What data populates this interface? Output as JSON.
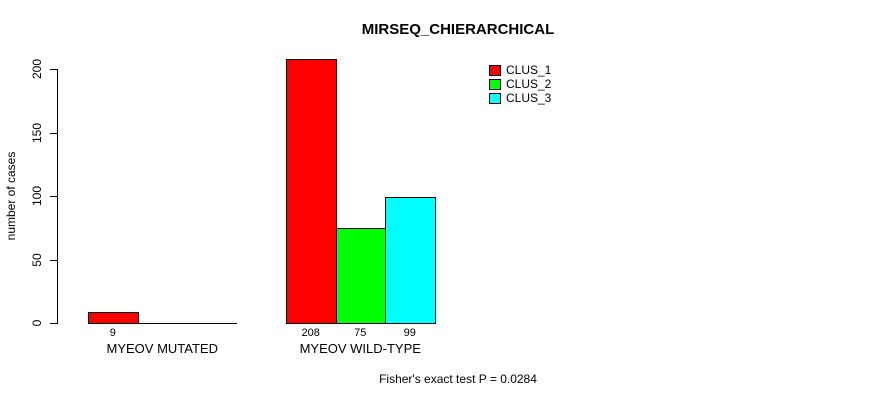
{
  "chart_data": {
    "type": "bar",
    "title": "MIRSEQ_CHIERARCHICAL",
    "ylabel": "number of cases",
    "xlabel": "",
    "ylim": [
      0,
      200
    ],
    "yticks": [
      0,
      50,
      100,
      150,
      200
    ],
    "grid": false,
    "legend_position": "top-right-inside",
    "categories": [
      "MYEOV MUTATED",
      "MYEOV WILD-TYPE"
    ],
    "series": [
      {
        "name": "CLUS_1",
        "color": "#FF0000",
        "values": [
          9,
          208
        ]
      },
      {
        "name": "CLUS_2",
        "color": "#00FF00",
        "values": [
          0,
          75
        ]
      },
      {
        "name": "CLUS_3",
        "color": "#00FFFF",
        "values": [
          0,
          99
        ]
      }
    ],
    "bar_value_labels": [
      [
        "9",
        "",
        ""
      ],
      [
        "208",
        "75",
        "99"
      ]
    ],
    "footnote": "Fisher's exact test P = 0.0284"
  }
}
